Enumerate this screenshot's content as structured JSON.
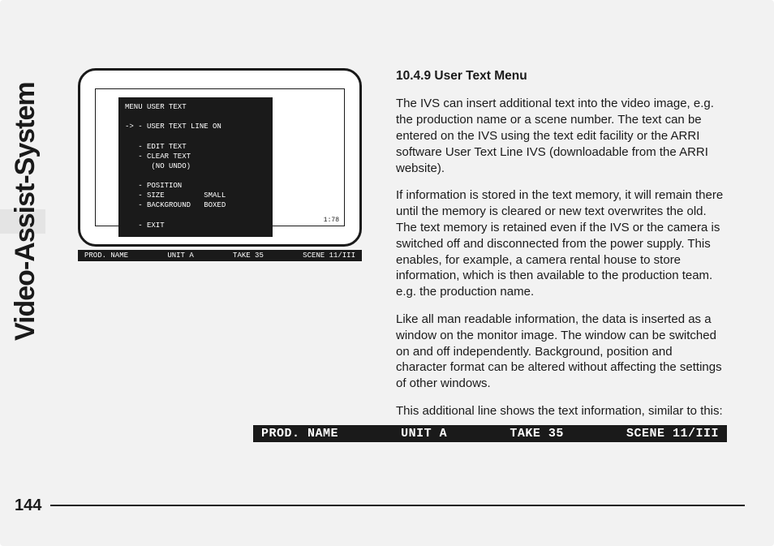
{
  "page": {
    "side_heading": "Video-Assist-System",
    "page_number": "144"
  },
  "menu": {
    "title": "MENU USER TEXT",
    "line1": "-> - USER TEXT LINE ON",
    "edit": "   - EDIT TEXT",
    "clear": "   - CLEAR TEXT",
    "noundo": "      (NO UNDO)",
    "position": "   - POSITION",
    "size": "   - SIZE         SMALL",
    "background": "   - BACKGROUND   BOXED",
    "exit": "   - EXIT",
    "aspect": "1:78"
  },
  "status_small": {
    "prod": "PROD. NAME",
    "unit": "UNIT A",
    "take": "TAKE 35",
    "scene": "SCENE 11/III"
  },
  "section": {
    "title": "10.4.9 User Text Menu",
    "p1": "The IVS can insert additional text into the video image, e.g. the production name or a scene number. The text can be entered on the IVS using the text edit facility or the ARRI software User Text Line IVS (downloadable from the ARRI website).",
    "p2": "If information is stored in the text memory, it will remain there until the memory is cleared or new text overwrites the old. The text memory is retained even if the IVS or the camera is switched off and disconnected from the power supply. This enables, for example, a camera rental house to store information, which is then available to the production team. e.g. the production name.",
    "p3": "Like all man readable information, the data is inserted as a window on the monitor image. The window can be switched on and off independently. Background, position and character format can be altered without affecting the settings of other windows.",
    "p4": "This additional line shows the text information, similar to this:"
  },
  "status_large": {
    "prod": "PROD. NAME",
    "unit": "UNIT A",
    "take": "TAKE 35",
    "scene": "SCENE 11/III"
  }
}
